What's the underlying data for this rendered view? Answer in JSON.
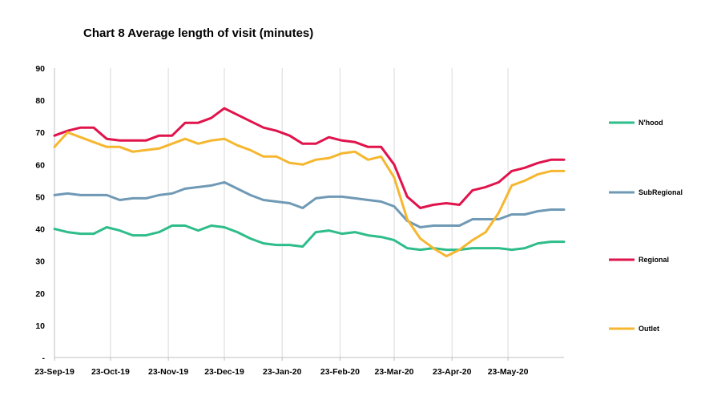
{
  "chart_data": {
    "type": "line",
    "title": "Chart 8 Average length of visit (minutes)",
    "xlabel": "",
    "ylabel": "",
    "ylim": [
      0,
      90
    ],
    "yticks": [
      "-",
      "10",
      "20",
      "30",
      "40",
      "50",
      "60",
      "70",
      "80",
      "90"
    ],
    "x": [
      "2019-09-23",
      "2019-09-30",
      "2019-10-07",
      "2019-10-14",
      "2019-10-21",
      "2019-10-28",
      "2019-11-04",
      "2019-11-11",
      "2019-11-18",
      "2019-11-25",
      "2019-12-02",
      "2019-12-09",
      "2019-12-16",
      "2019-12-23",
      "2019-12-30",
      "2020-01-06",
      "2020-01-13",
      "2020-01-20",
      "2020-01-27",
      "2020-02-03",
      "2020-02-10",
      "2020-02-17",
      "2020-02-24",
      "2020-03-02",
      "2020-03-09",
      "2020-03-16",
      "2020-03-23",
      "2020-03-30",
      "2020-04-06",
      "2020-04-13",
      "2020-04-20",
      "2020-04-27",
      "2020-05-04",
      "2020-05-11",
      "2020-05-18",
      "2020-05-25",
      "2020-06-01",
      "2020-06-08",
      "2020-06-15",
      "2020-06-22"
    ],
    "xtick_labels": [
      "23-Sep-19",
      "23-Oct-19",
      "23-Nov-19",
      "23-Dec-19",
      "23-Jan-20",
      "23-Feb-20",
      "23-Mar-20",
      "23-Apr-20",
      "23-May-20"
    ],
    "xtick_dates": [
      "2019-09-23",
      "2019-10-23",
      "2019-11-23",
      "2019-12-23",
      "2020-01-23",
      "2020-02-23",
      "2020-03-23",
      "2020-04-23",
      "2020-05-23"
    ],
    "grid": "vertical",
    "legend_position": "right",
    "series": [
      {
        "name": "N'hood",
        "color": "#2ebd8a",
        "values": [
          40,
          39,
          38.5,
          38.5,
          40.5,
          39.5,
          38,
          38,
          39,
          41,
          41,
          39.5,
          41,
          40.5,
          39,
          37,
          35.5,
          35,
          35,
          34.5,
          39,
          39.5,
          38.5,
          39,
          38,
          37.5,
          36.5,
          34,
          33.5,
          34,
          33.5,
          33.5,
          34,
          34,
          34,
          33.5,
          34,
          35.5,
          36,
          36
        ]
      },
      {
        "name": "SubRegional",
        "color": "#6f99b5",
        "values": [
          50.5,
          51,
          50.5,
          50.5,
          50.5,
          49,
          49.5,
          49.5,
          50.5,
          51,
          52.5,
          53,
          53.5,
          54.5,
          52.5,
          50.5,
          49,
          48.5,
          48,
          46.5,
          49.5,
          50,
          50,
          49.5,
          49,
          48.5,
          47,
          42.5,
          40.5,
          41,
          41,
          41,
          43,
          43,
          43,
          44.5,
          44.5,
          45.5,
          46,
          46
        ]
      },
      {
        "name": "Regional",
        "color": "#e0134b",
        "values": [
          69,
          70.5,
          71.5,
          71.5,
          68,
          67.5,
          67.5,
          67.5,
          69,
          69,
          73,
          73,
          74.5,
          77.5,
          75.5,
          73.5,
          71.5,
          70.5,
          69,
          66.5,
          66.5,
          68.5,
          67.5,
          67,
          65.5,
          65.5,
          60,
          50,
          46.5,
          47.5,
          48,
          47.5,
          52,
          53,
          54.5,
          58,
          59,
          60.5,
          61.5,
          61.5
        ]
      },
      {
        "name": "Outlet",
        "color": "#f5b730",
        "values": [
          65.5,
          70,
          68.5,
          67,
          65.5,
          65.5,
          64,
          64.5,
          65,
          66.5,
          68,
          66.5,
          67.5,
          68,
          66,
          64.5,
          62.5,
          62.5,
          60.5,
          60,
          61.5,
          62,
          63.5,
          64,
          61.5,
          62.5,
          56,
          43,
          37,
          34,
          31.5,
          33.5,
          36.5,
          39,
          45,
          53.5,
          55,
          57,
          58,
          58
        ]
      }
    ]
  }
}
